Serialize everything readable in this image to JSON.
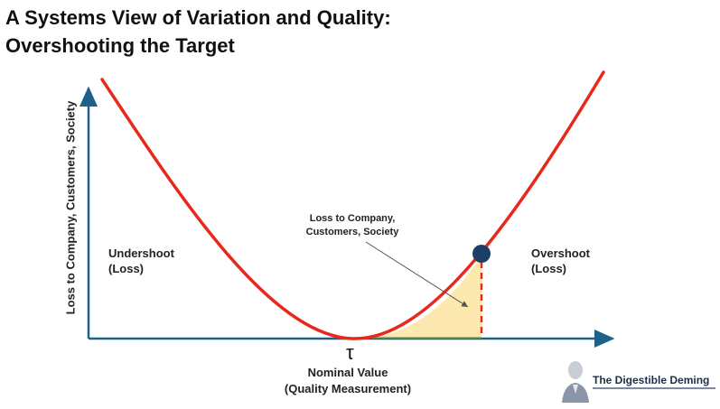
{
  "title": {
    "line1": "A Systems View of Variation and Quality:",
    "line2": "Overshooting the Target"
  },
  "axes": {
    "y_label": "Loss to Company, Customers, Society",
    "x_symbol": "τ",
    "x_label_line1": "Nominal Value",
    "x_label_line2": "(Quality Measurement)"
  },
  "regions": {
    "undershoot_line1": "Undershoot",
    "undershoot_line2": "(Loss)",
    "overshoot_line1": "Overshoot",
    "overshoot_line2": "(Loss)"
  },
  "callout": {
    "line1": "Loss to Company,",
    "line2": "Customers, Society"
  },
  "brand": {
    "name": "The Digestible Deming"
  },
  "colors": {
    "curve": "#e8281c",
    "axis": "#1f5f8b",
    "marker": "#1b3f66",
    "fill": "#fde9b0"
  }
}
